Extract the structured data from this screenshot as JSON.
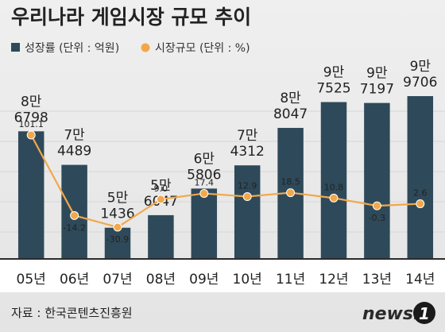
{
  "chart_data": {
    "type": "bar",
    "title": "우리나라 게임시장 규모 추이",
    "categories": [
      "05년",
      "06년",
      "07년",
      "08년",
      "09년",
      "10년",
      "11년",
      "12년",
      "13년",
      "14년"
    ],
    "series": [
      {
        "name": "성장률 (단위 : 억원)",
        "kind": "bar",
        "values": [
          86798,
          74489,
          51436,
          56047,
          65806,
          74312,
          88047,
          97525,
          97197,
          99706
        ],
        "labels_top": [
          "8만",
          "7만",
          "5만",
          "5만",
          "6만",
          "7만",
          "8만",
          "9만",
          "9만",
          "9만"
        ],
        "labels_bottom": [
          "6798",
          "4489",
          "1436",
          "6047",
          "5806",
          "4312",
          "8047",
          "7525",
          "7197",
          "9706"
        ],
        "color": "#2e4a5a"
      },
      {
        "name": "시장규모 (단위 : %)",
        "kind": "line",
        "values": [
          101.1,
          -14.2,
          -30.9,
          9.0,
          17.4,
          12.9,
          18.5,
          10.8,
          -0.3,
          2.6
        ],
        "labels": [
          "101.1",
          "-14.2",
          "-30.9",
          "9.0",
          "17.4",
          "12.9",
          "18.5",
          "10.8",
          "-0.3",
          "2.6"
        ],
        "color": "#f2a84a"
      }
    ],
    "legend": "top-left",
    "grid": true
  },
  "source": "자료 : 한국콘텐츠진흥원",
  "logo": "news1"
}
